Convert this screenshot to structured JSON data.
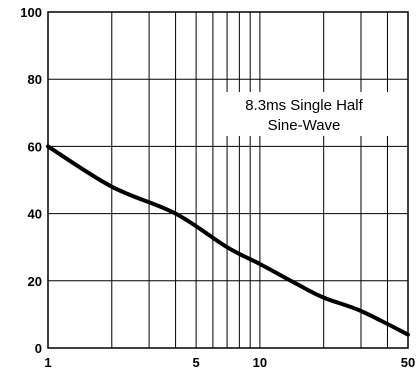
{
  "chart_data": {
    "type": "line",
    "title": "",
    "xlabel": "",
    "ylabel": "",
    "xscale": "log",
    "xlim": [
      1,
      50
    ],
    "ylim": [
      0,
      100
    ],
    "x_ticks": [
      1,
      5,
      10,
      50
    ],
    "x_tick_labels": [
      "1",
      "5",
      "10",
      "50"
    ],
    "y_ticks": [
      0,
      20,
      40,
      60,
      80,
      100
    ],
    "y_tick_labels": [
      "0",
      "20",
      "40",
      "60",
      "80",
      "100"
    ],
    "grid": true,
    "x_gridlines": [
      1,
      2,
      3,
      4,
      5,
      6,
      7,
      8,
      9,
      10,
      20,
      30,
      40,
      50
    ],
    "y_gridlines": [
      0,
      20,
      40,
      60,
      80,
      100
    ],
    "annotation_lines": [
      "8.3ms Single Half",
      "Sine-Wave"
    ],
    "series": [
      {
        "x": [
          1,
          2,
          4,
          7,
          10,
          15,
          20,
          30,
          50
        ],
        "y": [
          60,
          48,
          40,
          30,
          25,
          19,
          15,
          11,
          4
        ]
      }
    ]
  }
}
